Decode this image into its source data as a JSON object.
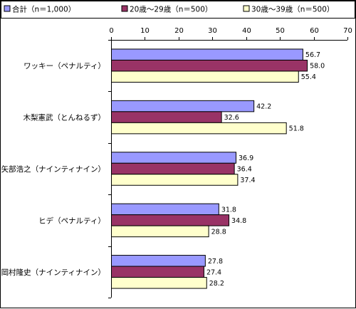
{
  "colors": {
    "series_0": "#9999ff",
    "series_1": "#993366",
    "series_2": "#ffffcc",
    "bar_stroke": "#000000",
    "axis": "#000000"
  },
  "chart_data": {
    "type": "bar",
    "orientation": "horizontal",
    "title": "",
    "xlabel": "",
    "ylabel": "",
    "xlim": [
      0,
      70
    ],
    "ticks": [
      0,
      10,
      20,
      30,
      40,
      50,
      60,
      70
    ],
    "tick_labels": [
      "0",
      "10",
      "20",
      "30",
      "40",
      "50",
      "60",
      "70"
    ],
    "x_axis_position": "top",
    "grid": false,
    "legend_position": "top",
    "categories": [
      "ワッキー（ペナルティ）",
      "木梨憲武（とんねるず）",
      "矢部浩之（ナインティナイン）",
      "ヒデ（ペナルティ）",
      "岡村隆史（ナインティナイン）"
    ],
    "series": [
      {
        "name": "合計（n＝1,000）",
        "values": [
          56.7,
          42.2,
          36.9,
          31.8,
          27.8
        ],
        "labels": [
          "56.7",
          "42.2",
          "36.9",
          "31.8",
          "27.8"
        ]
      },
      {
        "name": "20歳～29歳（n＝500）",
        "values": [
          58.0,
          32.6,
          36.4,
          34.8,
          27.4
        ],
        "labels": [
          "58.0",
          "32.6",
          "36.4",
          "34.8",
          "27.4"
        ]
      },
      {
        "name": "30歳～39歳（n＝500）",
        "values": [
          55.4,
          51.8,
          37.4,
          28.8,
          28.2
        ],
        "labels": [
          "55.4",
          "51.8",
          "37.4",
          "28.8",
          "28.2"
        ]
      }
    ]
  }
}
